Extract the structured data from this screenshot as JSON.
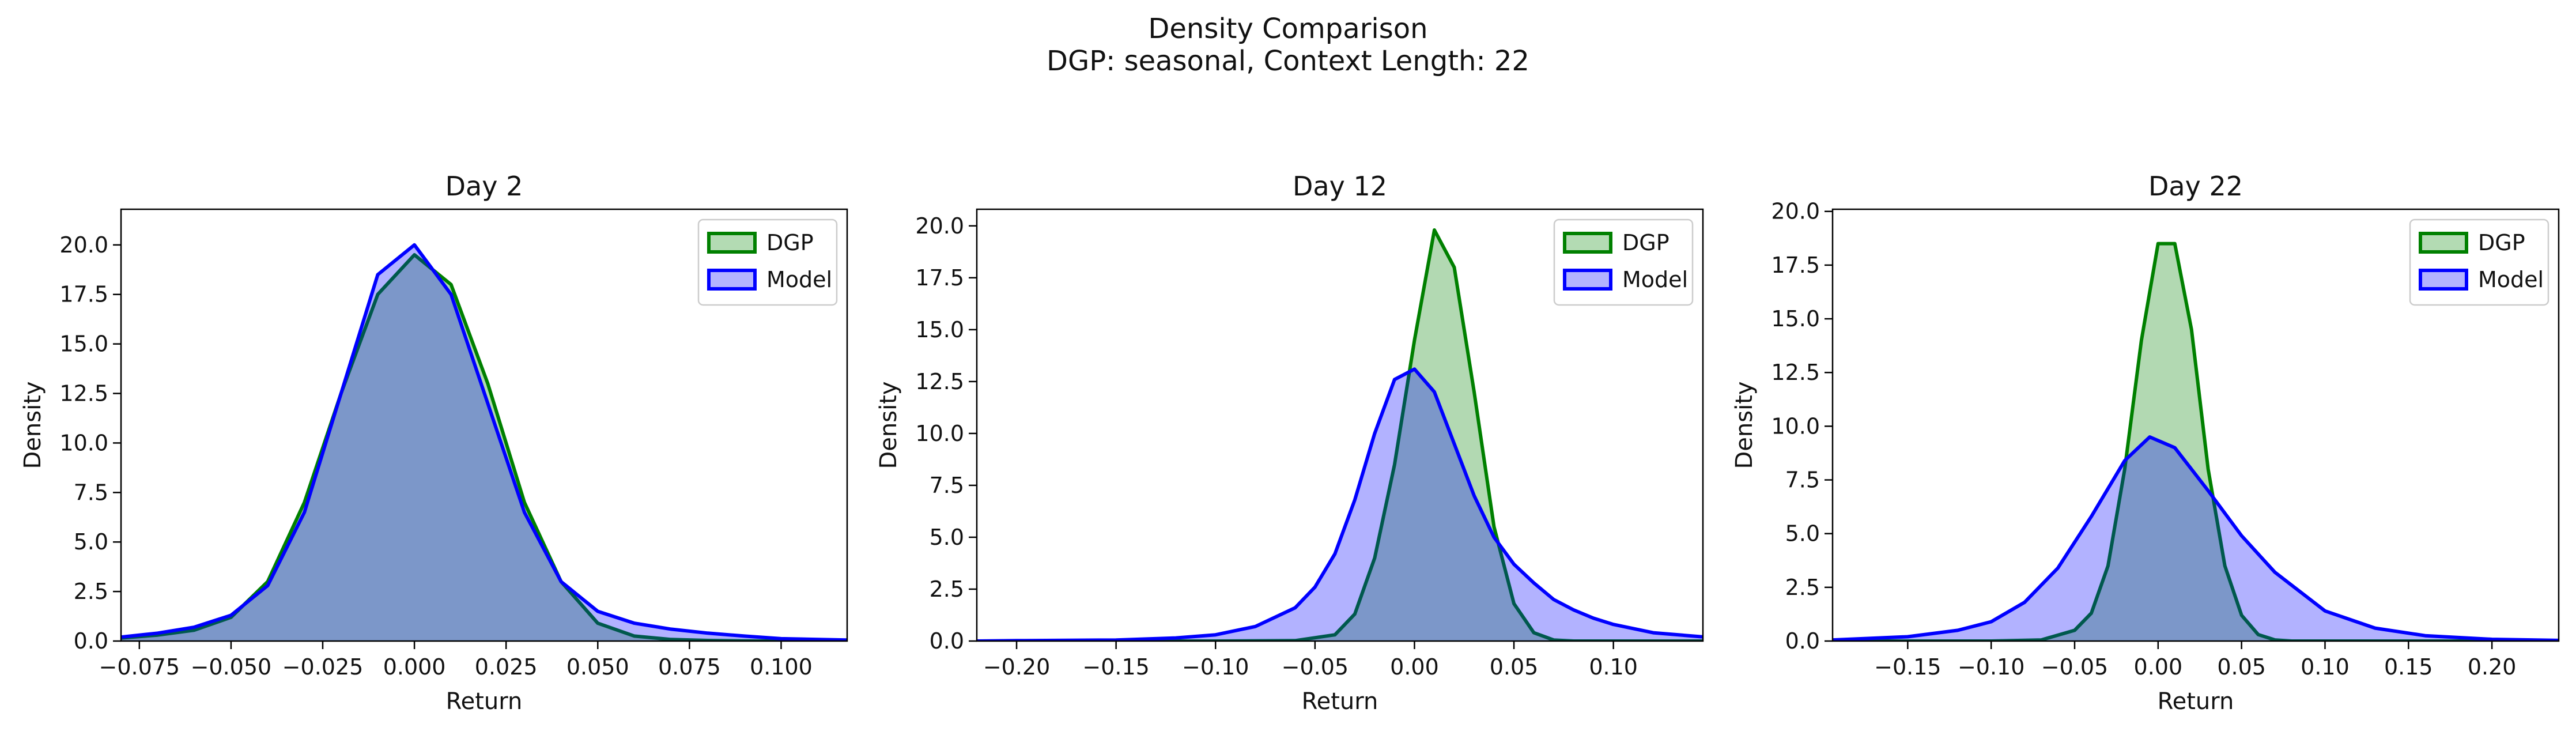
{
  "figure": {
    "title_line1": "Density Comparison",
    "title_line2": "DGP: seasonal, Context Length: 22"
  },
  "colors": {
    "dgp_line": "#008000",
    "dgp_fill": "#b3dbb3",
    "model_line": "#0000ff",
    "model_fill": "#b3b3ff",
    "overlap_fill": "#7f99cb"
  },
  "chart_data": [
    {
      "type": "area",
      "title": "Day 2",
      "xlabel": "Return",
      "ylabel": "Density",
      "xlim": [
        -0.08,
        0.118
      ],
      "ylim": [
        0,
        21.8
      ],
      "xticks": [
        -0.075,
        -0.05,
        -0.025,
        0.0,
        0.025,
        0.05,
        0.075,
        0.1
      ],
      "xtick_labels": [
        "−0.075",
        "−0.050",
        "−0.025",
        "0.000",
        "0.025",
        "0.050",
        "0.075",
        "0.100"
      ],
      "yticks": [
        0,
        2.5,
        5,
        7.5,
        10,
        12.5,
        15,
        17.5,
        20
      ],
      "ytick_labels": [
        "0.0",
        "2.5",
        "5.0",
        "7.5",
        "10.0",
        "12.5",
        "15.0",
        "17.5",
        "20.0"
      ],
      "legend": {
        "position": "top-right",
        "entries": [
          "DGP",
          "Model"
        ]
      },
      "series": [
        {
          "name": "DGP",
          "x": [
            -0.08,
            -0.07,
            -0.06,
            -0.05,
            -0.04,
            -0.03,
            -0.02,
            -0.01,
            0.0,
            0.01,
            0.02,
            0.03,
            0.04,
            0.05,
            0.06,
            0.07,
            0.08,
            0.09,
            0.1,
            0.118
          ],
          "y": [
            0.15,
            0.3,
            0.55,
            1.2,
            3.0,
            7.0,
            12.5,
            17.5,
            19.5,
            18.0,
            13.0,
            7.0,
            3.0,
            0.9,
            0.25,
            0.08,
            0.03,
            0.01,
            0.0,
            0.0
          ]
        },
        {
          "name": "Model",
          "x": [
            -0.08,
            -0.07,
            -0.06,
            -0.05,
            -0.04,
            -0.03,
            -0.02,
            -0.01,
            0.0,
            0.01,
            0.02,
            0.03,
            0.04,
            0.05,
            0.06,
            0.07,
            0.08,
            0.09,
            0.1,
            0.118
          ],
          "y": [
            0.2,
            0.4,
            0.7,
            1.3,
            2.8,
            6.5,
            12.5,
            18.5,
            20.0,
            17.5,
            12.0,
            6.5,
            3.0,
            1.5,
            0.9,
            0.6,
            0.4,
            0.25,
            0.12,
            0.05
          ]
        }
      ]
    },
    {
      "type": "area",
      "title": "Day 12",
      "xlabel": "Return",
      "ylabel": "Density",
      "xlim": [
        -0.22,
        0.145
      ],
      "ylim": [
        0,
        20.8
      ],
      "xticks": [
        -0.2,
        -0.15,
        -0.1,
        -0.05,
        0.0,
        0.05,
        0.1
      ],
      "xtick_labels": [
        "−0.20",
        "−0.15",
        "−0.10",
        "−0.05",
        "0.00",
        "0.05",
        "0.10"
      ],
      "yticks": [
        0,
        2.5,
        5,
        7.5,
        10,
        12.5,
        15,
        17.5,
        20
      ],
      "ytick_labels": [
        "0.0",
        "2.5",
        "5.0",
        "7.5",
        "10.0",
        "12.5",
        "15.0",
        "17.5",
        "20.0"
      ],
      "legend": {
        "position": "top-right",
        "entries": [
          "DGP",
          "Model"
        ]
      },
      "series": [
        {
          "name": "DGP",
          "x": [
            -0.22,
            -0.1,
            -0.06,
            -0.04,
            -0.03,
            -0.02,
            -0.01,
            0.0,
            0.01,
            0.02,
            0.03,
            0.04,
            0.05,
            0.06,
            0.07,
            0.08,
            0.145
          ],
          "y": [
            0.0,
            0.0,
            0.02,
            0.3,
            1.3,
            4.0,
            8.5,
            14.5,
            19.8,
            18.0,
            12.0,
            5.5,
            1.8,
            0.4,
            0.05,
            0.0,
            0.0
          ]
        },
        {
          "name": "Model",
          "x": [
            -0.22,
            -0.2,
            -0.15,
            -0.12,
            -0.1,
            -0.08,
            -0.06,
            -0.05,
            -0.04,
            -0.03,
            -0.02,
            -0.01,
            0.0,
            0.01,
            0.02,
            0.03,
            0.04,
            0.05,
            0.06,
            0.07,
            0.08,
            0.09,
            0.1,
            0.12,
            0.145
          ],
          "y": [
            0.0,
            0.02,
            0.05,
            0.15,
            0.3,
            0.7,
            1.6,
            2.6,
            4.2,
            6.8,
            10.0,
            12.6,
            13.1,
            12.0,
            9.5,
            7.0,
            5.0,
            3.7,
            2.8,
            2.0,
            1.5,
            1.1,
            0.8,
            0.4,
            0.2
          ]
        }
      ]
    },
    {
      "type": "area",
      "title": "Day 22",
      "xlabel": "Return",
      "ylabel": "Density",
      "xlim": [
        -0.195,
        0.24
      ],
      "ylim": [
        0,
        20.1
      ],
      "xticks": [
        -0.15,
        -0.1,
        -0.05,
        0.0,
        0.05,
        0.1,
        0.15,
        0.2
      ],
      "xtick_labels": [
        "−0.15",
        "−0.10",
        "−0.05",
        "0.00",
        "0.05",
        "0.10",
        "0.15",
        "0.20"
      ],
      "yticks": [
        0,
        2.5,
        5,
        7.5,
        10,
        12.5,
        15,
        17.5,
        20
      ],
      "ytick_labels": [
        "0.0",
        "2.5",
        "5.0",
        "7.5",
        "10.0",
        "12.5",
        "15.0",
        "17.5",
        "20.0"
      ],
      "legend": {
        "position": "top-right",
        "entries": [
          "DGP",
          "Model"
        ]
      },
      "series": [
        {
          "name": "DGP",
          "x": [
            -0.195,
            -0.1,
            -0.07,
            -0.05,
            -0.04,
            -0.03,
            -0.02,
            -0.01,
            0.0,
            0.01,
            0.02,
            0.03,
            0.04,
            0.05,
            0.06,
            0.07,
            0.08,
            0.24
          ],
          "y": [
            0.0,
            0.0,
            0.05,
            0.5,
            1.3,
            3.5,
            8.0,
            14.0,
            18.5,
            18.5,
            14.5,
            8.0,
            3.5,
            1.2,
            0.3,
            0.05,
            0.0,
            0.0
          ]
        },
        {
          "name": "Model",
          "x": [
            -0.195,
            -0.15,
            -0.12,
            -0.1,
            -0.08,
            -0.06,
            -0.04,
            -0.02,
            -0.005,
            0.01,
            0.03,
            0.05,
            0.07,
            0.1,
            0.13,
            0.16,
            0.2,
            0.24
          ],
          "y": [
            0.05,
            0.2,
            0.5,
            0.9,
            1.8,
            3.4,
            5.8,
            8.4,
            9.5,
            9.0,
            7.0,
            4.9,
            3.2,
            1.4,
            0.6,
            0.25,
            0.08,
            0.03
          ]
        }
      ]
    }
  ]
}
